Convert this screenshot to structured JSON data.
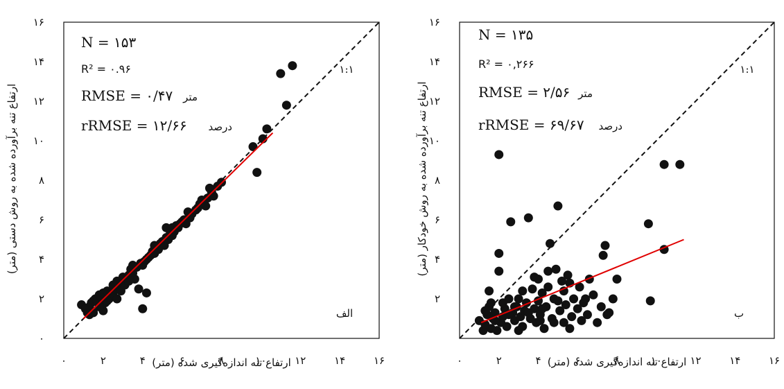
{
  "chart_data": [
    {
      "type": "scatter",
      "panel_label": "الف",
      "xlabel": "ارتفاع تنه اندازه‌گیری شده (متر)",
      "ylabel": "ارتفاع تنه برآورده شده به روش دستی (متر)",
      "xlim": [
        0,
        16
      ],
      "ylim": [
        0,
        16
      ],
      "x_ticks": [
        0,
        2,
        4,
        6,
        8,
        10,
        12,
        14,
        16
      ],
      "y_ticks": [
        0,
        2,
        4,
        6,
        8,
        10,
        12,
        14,
        16
      ],
      "x_tick_labels": [
        "۰",
        "۲",
        "۴",
        "۶",
        "۸",
        "۱۰",
        "۱۲",
        "۱۴",
        "۱۶"
      ],
      "y_tick_labels": [
        "۰",
        "۲",
        "۴",
        "۶",
        "۸",
        "۱۰",
        "۱۲",
        "۱۴",
        "۱۶"
      ],
      "one_to_one_label": "۱:۱",
      "annotations": {
        "n": "N = ۱۵۳",
        "r2": "R² = ۰.۹۶",
        "rmse": "RMSE = ۰/۴۷",
        "rmse_unit": "متر",
        "rrmse": "rRMSE = ۱۲/۶۶",
        "rrmse_unit": "درصد"
      },
      "regression_line": {
        "x": [
          1.0,
          10.6
        ],
        "y": [
          1.0,
          10.4
        ]
      },
      "points": [
        [
          0.9,
          1.7
        ],
        [
          1.1,
          1.5
        ],
        [
          1.2,
          1.3
        ],
        [
          1.3,
          1.6
        ],
        [
          1.4,
          1.8
        ],
        [
          1.5,
          1.9
        ],
        [
          1.6,
          2.0
        ],
        [
          1.7,
          1.9
        ],
        [
          1.8,
          2.2
        ],
        [
          1.9,
          2.1
        ],
        [
          2.0,
          1.4
        ],
        [
          2.0,
          2.3
        ],
        [
          2.1,
          1.8
        ],
        [
          2.2,
          2.4
        ],
        [
          2.3,
          2.0
        ],
        [
          2.4,
          2.3
        ],
        [
          2.5,
          2.2
        ],
        [
          2.6,
          2.5
        ],
        [
          2.7,
          2.0
        ],
        [
          2.8,
          2.6
        ],
        [
          2.9,
          2.4
        ],
        [
          3.0,
          2.8
        ],
        [
          3.1,
          2.7
        ],
        [
          3.2,
          3.0
        ],
        [
          3.3,
          3.2
        ],
        [
          3.4,
          3.5
        ],
        [
          3.5,
          3.3
        ],
        [
          3.6,
          3.0
        ],
        [
          3.7,
          3.6
        ],
        [
          3.8,
          2.5
        ],
        [
          3.9,
          3.8
        ],
        [
          4.0,
          3.7
        ],
        [
          4.1,
          3.9
        ],
        [
          4.2,
          2.3
        ],
        [
          4.2,
          4.0
        ],
        [
          4.4,
          4.2
        ],
        [
          4.5,
          4.4
        ],
        [
          4.6,
          4.3
        ],
        [
          4.7,
          4.6
        ],
        [
          4.8,
          4.5
        ],
        [
          4.9,
          4.8
        ],
        [
          5.0,
          4.9
        ],
        [
          5.1,
          4.7
        ],
        [
          5.2,
          5.1
        ],
        [
          5.3,
          5.0
        ],
        [
          5.4,
          5.3
        ],
        [
          5.5,
          5.6
        ],
        [
          5.6,
          5.4
        ],
        [
          5.7,
          5.7
        ],
        [
          5.8,
          5.6
        ],
        [
          6.0,
          5.9
        ],
        [
          6.1,
          6.0
        ],
        [
          6.2,
          5.8
        ],
        [
          6.4,
          6.1
        ],
        [
          6.5,
          6.3
        ],
        [
          6.7,
          6.5
        ],
        [
          6.9,
          6.8
        ],
        [
          7.0,
          7.0
        ],
        [
          7.2,
          6.7
        ],
        [
          7.3,
          7.1
        ],
        [
          7.5,
          7.4
        ],
        [
          7.6,
          7.2
        ],
        [
          7.8,
          7.7
        ],
        [
          8.0,
          7.9
        ],
        [
          4.0,
          1.5
        ],
        [
          1.5,
          1.3
        ],
        [
          2.5,
          2.7
        ],
        [
          3.5,
          3.7
        ],
        [
          4.6,
          4.7
        ],
        [
          5.2,
          5.6
        ],
        [
          6.3,
          6.4
        ],
        [
          7.4,
          7.6
        ],
        [
          9.6,
          9.7
        ],
        [
          9.8,
          8.4
        ],
        [
          10.1,
          10.1
        ],
        [
          10.3,
          10.6
        ],
        [
          11.0,
          13.4
        ],
        [
          11.3,
          11.8
        ],
        [
          11.6,
          13.8
        ],
        [
          1.8,
          1.6
        ],
        [
          2.2,
          1.9
        ],
        [
          3.0,
          3.1
        ],
        [
          4.3,
          4.1
        ],
        [
          5.5,
          5.2
        ],
        [
          6.8,
          6.6
        ],
        [
          5.9,
          5.8
        ],
        [
          3.3,
          2.9
        ],
        [
          2.7,
          2.9
        ],
        [
          1.3,
          1.2
        ]
      ]
    },
    {
      "type": "scatter",
      "panel_label": "ب",
      "xlabel": "ارتفاع تنه اندازه‌گیری شده (متر)",
      "ylabel": "ارتفاع تنه برآورده شده به روش خودکار (متر)",
      "xlim": [
        0,
        16
      ],
      "ylim": [
        0,
        16
      ],
      "x_ticks": [
        0,
        2,
        4,
        6,
        8,
        10,
        12,
        14,
        16
      ],
      "y_ticks": [
        2,
        4,
        6,
        8,
        10,
        12,
        14,
        16
      ],
      "x_tick_labels": [
        "۰",
        "۲",
        "۴",
        "۶",
        "۸",
        "۱۰",
        "۱۲",
        "۱۴",
        "۱۶"
      ],
      "y_tick_labels": [
        "۲",
        "۴",
        "۶",
        "۸",
        "۱۰",
        "۱۲",
        "۱۴",
        "۱۶"
      ],
      "one_to_one_label": "۱:۱",
      "annotations": {
        "n": "N = ۱۳۵",
        "r2": "R² = ۰,۲۶۶",
        "rmse": "RMSE = ۲/۵۶",
        "rmse_unit": "متر",
        "rrmse": "rRMSE = ۶۹/۶۷",
        "rrmse_unit": "درصد"
      },
      "regression_line": {
        "x": [
          1.1,
          11.4
        ],
        "y": [
          0.8,
          5.0
        ]
      },
      "points": [
        [
          1.0,
          0.9
        ],
        [
          1.2,
          0.4
        ],
        [
          1.3,
          0.7
        ],
        [
          1.4,
          1.2
        ],
        [
          1.5,
          1.6
        ],
        [
          1.5,
          2.4
        ],
        [
          1.6,
          0.5
        ],
        [
          1.7,
          1.0
        ],
        [
          1.8,
          1.3
        ],
        [
          1.9,
          0.4
        ],
        [
          2.0,
          3.4
        ],
        [
          2.0,
          4.3
        ],
        [
          2.0,
          9.3
        ],
        [
          2.1,
          0.8
        ],
        [
          2.2,
          1.1
        ],
        [
          2.3,
          1.5
        ],
        [
          2.4,
          0.6
        ],
        [
          2.5,
          2.0
        ],
        [
          2.6,
          5.9
        ],
        [
          2.7,
          1.3
        ],
        [
          2.8,
          0.9
        ],
        [
          2.9,
          1.6
        ],
        [
          3.0,
          2.0
        ],
        [
          3.1,
          1.1
        ],
        [
          3.2,
          0.6
        ],
        [
          3.3,
          1.4
        ],
        [
          3.4,
          1.8
        ],
        [
          3.5,
          6.1
        ],
        [
          3.6,
          1.0
        ],
        [
          3.7,
          2.5
        ],
        [
          3.8,
          1.5
        ],
        [
          3.9,
          0.8
        ],
        [
          4.0,
          1.9
        ],
        [
          4.0,
          3.0
        ],
        [
          4.1,
          1.2
        ],
        [
          4.2,
          2.3
        ],
        [
          4.3,
          0.5
        ],
        [
          4.4,
          1.6
        ],
        [
          4.5,
          3.4
        ],
        [
          4.6,
          4.8
        ],
        [
          4.7,
          1.0
        ],
        [
          4.8,
          2.0
        ],
        [
          4.9,
          3.5
        ],
        [
          5.0,
          6.7
        ],
        [
          5.1,
          1.4
        ],
        [
          5.2,
          2.9
        ],
        [
          5.3,
          0.8
        ],
        [
          5.4,
          1.7
        ],
        [
          5.5,
          3.2
        ],
        [
          5.6,
          0.5
        ],
        [
          5.7,
          1.1
        ],
        [
          5.8,
          2.0
        ],
        [
          6.0,
          1.5
        ],
        [
          6.1,
          2.6
        ],
        [
          6.2,
          0.9
        ],
        [
          6.3,
          1.8
        ],
        [
          6.5,
          1.2
        ],
        [
          6.6,
          3.0
        ],
        [
          6.8,
          2.2
        ],
        [
          7.0,
          0.8
        ],
        [
          7.2,
          1.6
        ],
        [
          7.3,
          4.2
        ],
        [
          7.4,
          4.7
        ],
        [
          7.5,
          1.2
        ],
        [
          7.8,
          2.0
        ],
        [
          8.0,
          3.0
        ],
        [
          9.6,
          5.8
        ],
        [
          9.7,
          1.9
        ],
        [
          10.4,
          4.5
        ],
        [
          10.4,
          8.8
        ],
        [
          11.2,
          8.8
        ],
        [
          1.3,
          1.4
        ],
        [
          1.8,
          0.9
        ],
        [
          2.5,
          1.2
        ],
        [
          3.0,
          0.4
        ],
        [
          3.5,
          1.3
        ],
        [
          4.2,
          1.5
        ],
        [
          4.8,
          0.8
        ],
        [
          5.3,
          2.4
        ],
        [
          6.4,
          2.0
        ],
        [
          3.2,
          2.4
        ],
        [
          2.2,
          1.8
        ],
        [
          4.5,
          2.6
        ],
        [
          5.0,
          1.9
        ],
        [
          3.8,
          3.1
        ],
        [
          1.6,
          1.8
        ],
        [
          2.8,
          1.6
        ],
        [
          4.1,
          0.9
        ],
        [
          5.6,
          2.8
        ],
        [
          7.6,
          1.3
        ]
      ]
    }
  ]
}
